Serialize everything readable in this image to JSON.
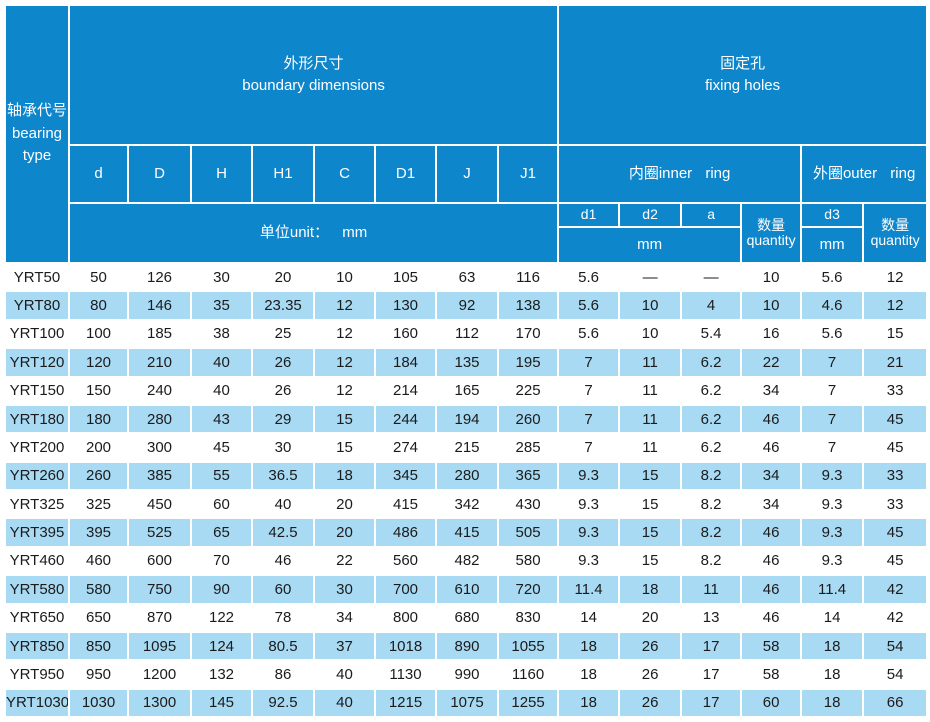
{
  "colors": {
    "header_blue": "#0e86cc",
    "row_alt": "#a8daf3",
    "row_plain": "#ffffff",
    "header_text": "#ffffff",
    "body_text": "#1b1b1b"
  },
  "header": {
    "bearing_type_zh": "轴承代号",
    "bearing_type_en": "bearing type",
    "boundary_zh": "外形尺寸",
    "boundary_en": "boundary dimensions",
    "fixing_zh": "固定孔",
    "fixing_en": "fixing holes",
    "dims": [
      "d",
      "D",
      "H",
      "H1",
      "C",
      "D1",
      "J",
      "J1"
    ],
    "unit_label": "单位unit： mm",
    "inner_ring": "内圈inner ring",
    "outer_ring": "外圈outer ring",
    "inner_cols": [
      "d1",
      "d2",
      "a"
    ],
    "qty_zh": "数量",
    "qty_en": "quantity",
    "d3_label": "d3",
    "mm_label": "mm"
  },
  "rows": [
    {
      "label": "YRT50",
      "values": [
        "50",
        "126",
        "30",
        "20",
        "10",
        "105",
        "63",
        "116",
        "5.6",
        "—",
        "—",
        "10",
        "5.6",
        "12"
      ]
    },
    {
      "label": "YRT80",
      "values": [
        "80",
        "146",
        "35",
        "23.35",
        "12",
        "130",
        "92",
        "138",
        "5.6",
        "10",
        "4",
        "10",
        "4.6",
        "12"
      ]
    },
    {
      "label": "YRT100",
      "values": [
        "100",
        "185",
        "38",
        "25",
        "12",
        "160",
        "112",
        "170",
        "5.6",
        "10",
        "5.4",
        "16",
        "5.6",
        "15"
      ]
    },
    {
      "label": "YRT120",
      "values": [
        "120",
        "210",
        "40",
        "26",
        "12",
        "184",
        "135",
        "195",
        "7",
        "11",
        "6.2",
        "22",
        "7",
        "21"
      ]
    },
    {
      "label": "YRT150",
      "values": [
        "150",
        "240",
        "40",
        "26",
        "12",
        "214",
        "165",
        "225",
        "7",
        "11",
        "6.2",
        "34",
        "7",
        "33"
      ]
    },
    {
      "label": "YRT180",
      "values": [
        "180",
        "280",
        "43",
        "29",
        "15",
        "244",
        "194",
        "260",
        "7",
        "11",
        "6.2",
        "46",
        "7",
        "45"
      ]
    },
    {
      "label": "YRT200",
      "values": [
        "200",
        "300",
        "45",
        "30",
        "15",
        "274",
        "215",
        "285",
        "7",
        "11",
        "6.2",
        "46",
        "7",
        "45"
      ]
    },
    {
      "label": "YRT260",
      "values": [
        "260",
        "385",
        "55",
        "36.5",
        "18",
        "345",
        "280",
        "365",
        "9.3",
        "15",
        "8.2",
        "34",
        "9.3",
        "33"
      ]
    },
    {
      "label": "YRT325",
      "values": [
        "325",
        "450",
        "60",
        "40",
        "20",
        "415",
        "342",
        "430",
        "9.3",
        "15",
        "8.2",
        "34",
        "9.3",
        "33"
      ]
    },
    {
      "label": "YRT395",
      "values": [
        "395",
        "525",
        "65",
        "42.5",
        "20",
        "486",
        "415",
        "505",
        "9.3",
        "15",
        "8.2",
        "46",
        "9.3",
        "45"
      ]
    },
    {
      "label": "YRT460",
      "values": [
        "460",
        "600",
        "70",
        "46",
        "22",
        "560",
        "482",
        "580",
        "9.3",
        "15",
        "8.2",
        "46",
        "9.3",
        "45"
      ]
    },
    {
      "label": "YRT580",
      "values": [
        "580",
        "750",
        "90",
        "60",
        "30",
        "700",
        "610",
        "720",
        "11.4",
        "18",
        "11",
        "46",
        "11.4",
        "42"
      ]
    },
    {
      "label": "YRT650",
      "values": [
        "650",
        "870",
        "122",
        "78",
        "34",
        "800",
        "680",
        "830",
        "14",
        "20",
        "13",
        "46",
        "14",
        "42"
      ]
    },
    {
      "label": "YRT850",
      "values": [
        "850",
        "1095",
        "124",
        "80.5",
        "37",
        "1018",
        "890",
        "1055",
        "18",
        "26",
        "17",
        "58",
        "18",
        "54"
      ]
    },
    {
      "label": "YRT950",
      "values": [
        "950",
        "1200",
        "132",
        "86",
        "40",
        "1130",
        "990",
        "1160",
        "18",
        "26",
        "17",
        "58",
        "18",
        "54"
      ]
    },
    {
      "label": "YRT1030",
      "values": [
        "1030",
        "1300",
        "145",
        "92.5",
        "40",
        "1215",
        "1075",
        "1255",
        "18",
        "26",
        "17",
        "60",
        "18",
        "66"
      ]
    }
  ]
}
